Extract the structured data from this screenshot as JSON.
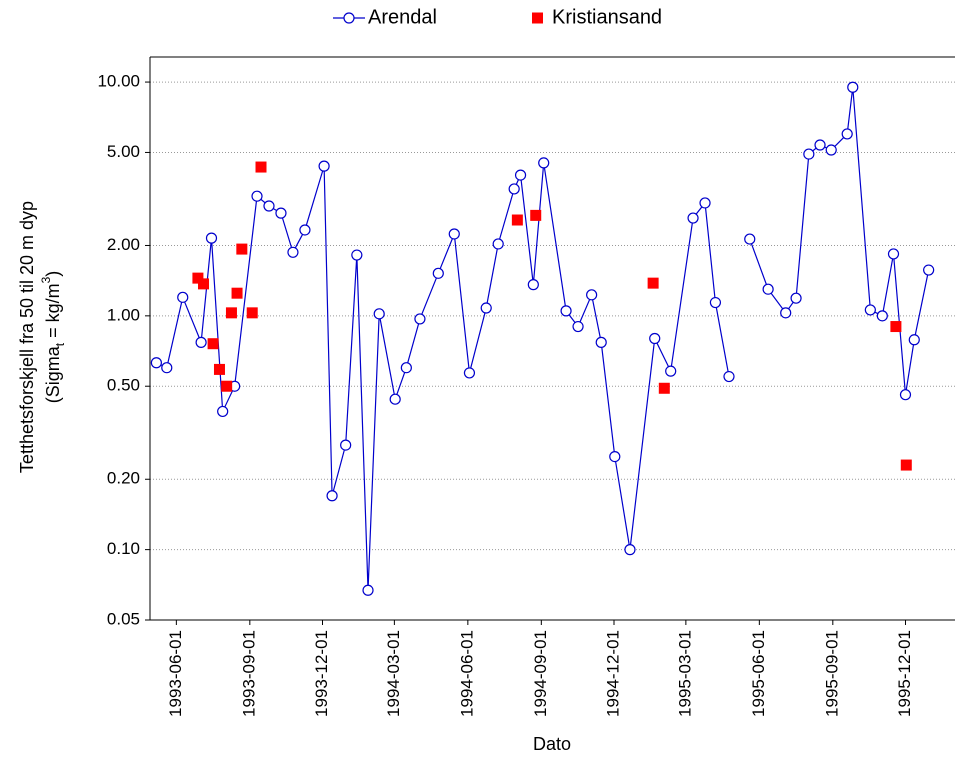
{
  "chart_data": {
    "type": "line",
    "x_label": "Dato",
    "y_label": [
      [
        {
          "text": "Tetthetsforskjell fra 50 til 20 m dyp"
        }
      ],
      [
        {
          "text": "(Sigma"
        },
        {
          "text": "t",
          "shift": "sub"
        },
        {
          "text": " = kg/m"
        },
        {
          "text": "3",
          "shift": "super"
        },
        {
          "text": ")"
        }
      ]
    ],
    "log_y": true,
    "grid": true,
    "legend": "top",
    "xlim": [
      "1993-04-29",
      "1996-02-01"
    ],
    "xticks": [
      "1993-06-01",
      "1993-09-01",
      "1993-12-01",
      "1994-03-01",
      "1994-06-01",
      "1994-09-01",
      "1994-12-01",
      "1995-03-01",
      "1995-06-01",
      "1995-09-01",
      "1995-12-01"
    ],
    "ylim": [
      0.05,
      12.8
    ],
    "yticks": [
      {
        "value": 0.05,
        "label": "0.05"
      },
      {
        "value": 0.1,
        "label": "0.10"
      },
      {
        "value": 0.2,
        "label": "0.20"
      },
      {
        "value": 0.5,
        "label": "0.50"
      },
      {
        "value": 1,
        "label": "1.00"
      },
      {
        "value": 2,
        "label": "2.00"
      },
      {
        "value": 5,
        "label": "5.00"
      },
      {
        "value": 10,
        "label": "10.00"
      }
    ],
    "series": [
      {
        "name": "Arendal",
        "color": "#0000cc",
        "marker": "circle",
        "line": true,
        "x": [
          "1993-05-07",
          "1993-05-20",
          "1993-06-09",
          "1993-07-02",
          "1993-07-15",
          "1993-07-29",
          "1993-08-13",
          "1993-09-10",
          "1993-09-25",
          "1993-10-10",
          "1993-10-25",
          "1993-11-09",
          "1993-12-03",
          "1993-12-13",
          "1993-12-30",
          "1994-01-13",
          "1994-01-27",
          "1994-02-10",
          "1994-03-02",
          "1994-03-16",
          "1994-04-02",
          "1994-04-25",
          "1994-05-15",
          "1994-06-03",
          "1994-06-24",
          "1994-07-09",
          "1994-07-29",
          "1994-08-06",
          "1994-08-22",
          "1994-09-04",
          "1994-10-02",
          "1994-10-17",
          "1994-11-03",
          "1994-11-15",
          "1994-12-02",
          "1994-12-21",
          "1995-01-21",
          "1995-02-10",
          "1995-03-10",
          "1995-03-25",
          "1995-04-07",
          "1995-04-24",
          null,
          "1995-05-20",
          "1995-06-12",
          "1995-07-04",
          "1995-07-17",
          "1995-08-02",
          "1995-08-16",
          "1995-08-30",
          "1995-09-19",
          "1995-09-26",
          "1995-10-18",
          "1995-11-02",
          "1995-11-16",
          "1995-12-01",
          "1995-12-12",
          "1995-12-30"
        ],
        "values": [
          0.63,
          0.6,
          1.2,
          0.77,
          2.15,
          0.39,
          0.5,
          3.25,
          2.95,
          2.75,
          1.87,
          2.33,
          4.37,
          0.17,
          0.28,
          1.82,
          0.067,
          1.02,
          0.44,
          0.6,
          0.97,
          1.52,
          2.24,
          0.57,
          1.08,
          2.03,
          3.49,
          4.0,
          1.36,
          4.51,
          1.05,
          0.9,
          1.23,
          0.77,
          0.25,
          0.1,
          0.8,
          0.58,
          2.62,
          3.04,
          1.14,
          0.55,
          null,
          2.13,
          1.3,
          1.03,
          1.19,
          4.92,
          5.38,
          5.12,
          6.0,
          9.5,
          1.06,
          1.0,
          1.84,
          0.46,
          0.79,
          1.57
        ]
      },
      {
        "name": "Kristiansand",
        "color": "#ff0000",
        "marker": "square",
        "line": false,
        "x": [
          "1993-06-28",
          "1993-07-05",
          "1993-07-17",
          "1993-07-25",
          "1993-08-03",
          "1993-08-09",
          "1993-08-16",
          "1993-08-22",
          "1993-09-04",
          "1993-09-15",
          "1994-08-02",
          "1994-08-25",
          "1995-01-19",
          "1995-02-02",
          "1995-11-19",
          "1995-12-02"
        ],
        "values": [
          1.45,
          1.37,
          0.76,
          0.59,
          0.5,
          1.03,
          1.25,
          1.93,
          1.03,
          4.33,
          2.57,
          2.69,
          1.38,
          0.49,
          0.9,
          0.23
        ]
      }
    ]
  }
}
